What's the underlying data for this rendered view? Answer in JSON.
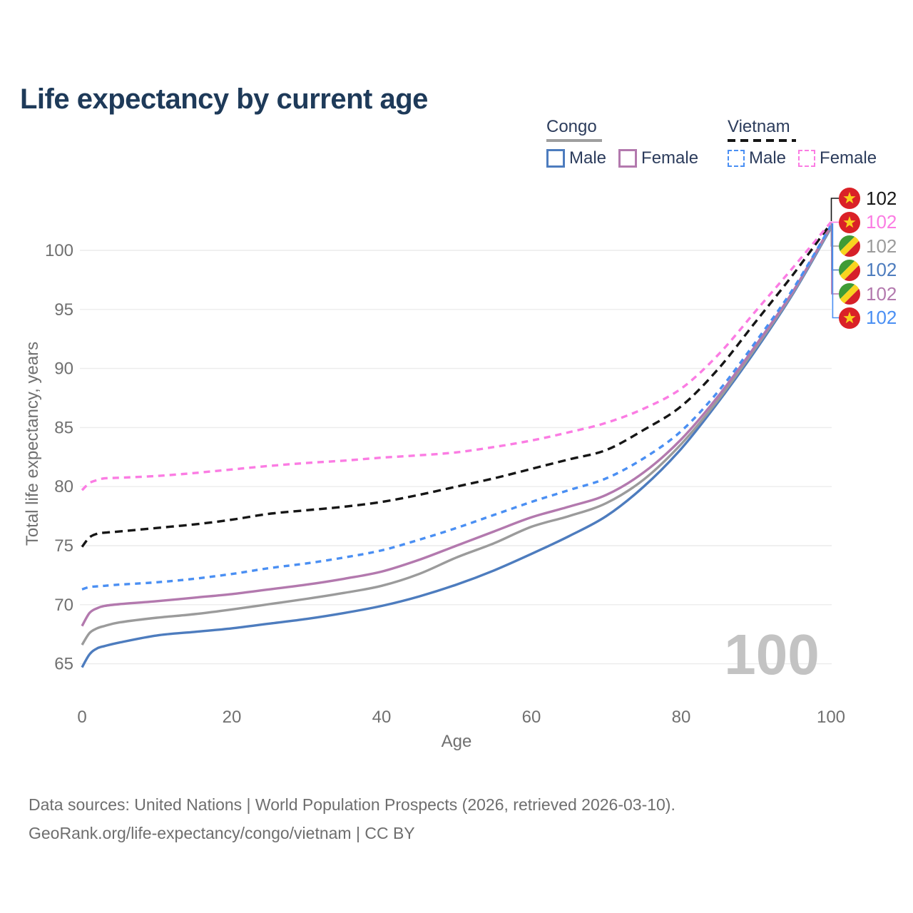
{
  "title": "Life expectancy by current age",
  "watermark": "100",
  "legend": {
    "groups": [
      {
        "name": "Congo",
        "line_style": "solid",
        "underline_color": "#9f9f9f",
        "items": [
          {
            "label": "Male",
            "color": "#4d7cbe",
            "line_style": "solid"
          },
          {
            "label": "Female",
            "color": "#b379ae",
            "line_style": "solid"
          }
        ]
      },
      {
        "name": "Vietnam",
        "line_style": "dashed",
        "underline_color": "#161616",
        "items": [
          {
            "label": "Male",
            "color": "#4a8ff3",
            "line_style": "dashed"
          },
          {
            "label": "Female",
            "color": "#fb7ce3",
            "line_style": "dashed"
          }
        ]
      }
    ]
  },
  "footer": {
    "line1": "Data sources: United Nations | World Population Prospects (2026, retrieved 2026-03-10).",
    "line2": "GeoRank.org/life-expectancy/congo/vietnam | CC BY"
  },
  "chart_data": {
    "type": "line",
    "title": "Life expectancy by current age",
    "xlabel": "Age",
    "ylabel": "Total life expectancy, years",
    "x_ticks": [
      0,
      20,
      40,
      60,
      80,
      100
    ],
    "y_ticks": [
      65,
      70,
      75,
      80,
      85,
      90,
      95,
      100
    ],
    "xlim": [
      0,
      100
    ],
    "ylim": [
      63,
      103.5
    ],
    "grid": "horizontal",
    "legend_position": "top-right",
    "ages": [
      0,
      1,
      2,
      3,
      5,
      10,
      15,
      20,
      25,
      30,
      35,
      40,
      45,
      50,
      55,
      60,
      65,
      70,
      75,
      80,
      85,
      90,
      95,
      100
    ],
    "series": [
      {
        "id": "vietnam",
        "flag": "vietnam",
        "color": "#161616",
        "line_style": "dashed",
        "end_label": "102",
        "values": [
          74.9,
          75.7,
          76.0,
          76.1,
          76.2,
          76.5,
          76.8,
          77.2,
          77.7,
          78.0,
          78.3,
          78.7,
          79.3,
          80.0,
          80.7,
          81.5,
          82.3,
          83.1,
          84.8,
          86.8,
          90.0,
          94.0,
          98.0,
          102.3
        ]
      },
      {
        "id": "vietnam-female",
        "flag": "vietnam",
        "color": "#fb7ce3",
        "line_style": "dashed",
        "end_label": "102",
        "values": [
          79.7,
          80.3,
          80.55,
          80.7,
          80.75,
          80.9,
          81.15,
          81.45,
          81.75,
          82.0,
          82.2,
          82.45,
          82.65,
          82.9,
          83.35,
          83.9,
          84.6,
          85.4,
          86.6,
          88.3,
          91.2,
          94.9,
          98.6,
          102.4
        ]
      },
      {
        "id": "congo",
        "flag": "congo",
        "color": "#9b9b9b",
        "line_style": "solid",
        "end_label": "102",
        "values": [
          66.6,
          67.6,
          68.0,
          68.2,
          68.5,
          68.9,
          69.2,
          69.6,
          70.05,
          70.5,
          71.0,
          71.6,
          72.6,
          74.0,
          75.2,
          76.6,
          77.5,
          78.6,
          80.6,
          83.6,
          87.4,
          91.8,
          96.5,
          102.0
        ]
      },
      {
        "id": "congo-male",
        "flag": "congo",
        "color": "#4d7cbe",
        "line_style": "solid",
        "end_label": "102",
        "values": [
          64.7,
          65.8,
          66.3,
          66.5,
          66.8,
          67.4,
          67.7,
          68.0,
          68.4,
          68.8,
          69.3,
          69.9,
          70.7,
          71.7,
          72.9,
          74.3,
          75.8,
          77.5,
          80.0,
          83.2,
          87.2,
          91.6,
          96.4,
          101.9
        ]
      },
      {
        "id": "congo-female",
        "flag": "congo",
        "color": "#b379ae",
        "line_style": "solid",
        "end_label": "102",
        "values": [
          68.2,
          69.3,
          69.7,
          69.9,
          70.05,
          70.3,
          70.6,
          70.9,
          71.3,
          71.7,
          72.2,
          72.8,
          73.8,
          75.0,
          76.2,
          77.4,
          78.3,
          79.3,
          81.2,
          84.0,
          87.7,
          92.0,
          96.6,
          102.1
        ]
      },
      {
        "id": "vietnam-male",
        "flag": "vietnam",
        "color": "#4a8ff3",
        "line_style": "dashed",
        "end_label": "102",
        "values": [
          71.3,
          71.5,
          71.55,
          71.6,
          71.7,
          71.9,
          72.2,
          72.6,
          73.1,
          73.5,
          74.0,
          74.6,
          75.5,
          76.5,
          77.6,
          78.7,
          79.7,
          80.7,
          82.4,
          84.7,
          88.1,
          92.3,
          96.8,
          102.1
        ]
      }
    ],
    "draw_order": [
      "congo-male",
      "congo",
      "congo-female",
      "vietnam-male",
      "vietnam",
      "vietnam-female"
    ]
  }
}
